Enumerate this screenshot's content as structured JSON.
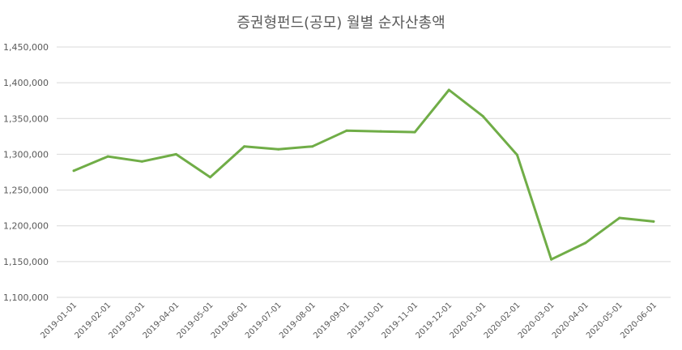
{
  "chart_data": {
    "type": "line",
    "title": "증권형펀드(공모) 월별 순자산총액",
    "xlabel": "",
    "ylabel": "",
    "ylim": [
      1100000,
      1450000
    ],
    "y_ticks": [
      1100000,
      1150000,
      1200000,
      1250000,
      1300000,
      1350000,
      1400000,
      1450000
    ],
    "y_tick_labels": [
      "1,100,000",
      "1,150,000",
      "1,200,000",
      "1,250,000",
      "1,300,000",
      "1,350,000",
      "1,400,000",
      "1,450,000"
    ],
    "grid": true,
    "legend": "none",
    "line_color": "#70AD47",
    "categories": [
      "2019-01-01",
      "2019-02-01",
      "2019-03-01",
      "2019-04-01",
      "2019-05-01",
      "2019-06-01",
      "2019-07-01",
      "2019-08-01",
      "2019-09-01",
      "2019-10-01",
      "2019-11-01",
      "2019-12-01",
      "2020-01-01",
      "2020-02-01",
      "2020-03-01",
      "2020-04-01",
      "2020-05-01",
      "2020-06-01"
    ],
    "series": [
      {
        "values": [
          1277000,
          1297000,
          1290000,
          1300000,
          1268000,
          1311000,
          1307000,
          1311000,
          1333000,
          1332000,
          1331000,
          1390000,
          1353000,
          1299000,
          1153000,
          1176000,
          1211000,
          1206000
        ]
      }
    ]
  }
}
